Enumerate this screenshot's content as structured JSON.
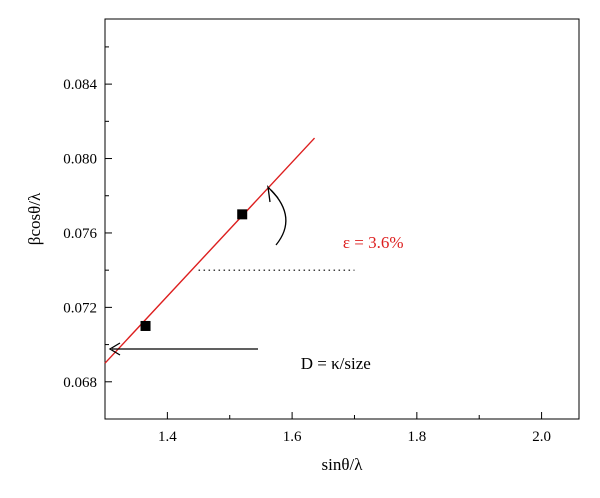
{
  "chart_data": {
    "type": "scatter",
    "xlabel": "sinθ/λ",
    "ylabel": "βcosθ/λ",
    "xlim": [
      1.3,
      2.06
    ],
    "ylim": [
      0.066,
      0.0875
    ],
    "x_ticks": [
      1.4,
      1.6,
      1.8,
      2.0
    ],
    "x_tick_labels": [
      "1.4",
      "1.6",
      "1.8",
      "2.0"
    ],
    "y_ticks": [
      0.068,
      0.072,
      0.076,
      0.08,
      0.084
    ],
    "y_tick_labels": [
      "0.068",
      "0.072",
      "0.076",
      "0.080",
      "0.084"
    ],
    "grid": false,
    "series": [
      {
        "marker": "square",
        "color": "#000000",
        "x": [
          1.365,
          1.52
        ],
        "y": [
          0.071,
          0.077
        ]
      }
    ],
    "fit_line": {
      "color": "#dd1f1f",
      "x": [
        1.3,
        1.636
      ],
      "y": [
        0.069,
        0.0811
      ]
    },
    "reference_line": {
      "style": "dotted",
      "x": [
        1.45,
        1.7
      ],
      "y": 0.074
    },
    "annotations": {
      "strain": {
        "text": "ε = 3.6%",
        "color": "#dd1f1f",
        "x": 1.73,
        "y": 0.0752
      },
      "size": {
        "text": "D = κ/size",
        "color": "#000000",
        "x": 1.67,
        "y": 0.0687
      }
    }
  }
}
